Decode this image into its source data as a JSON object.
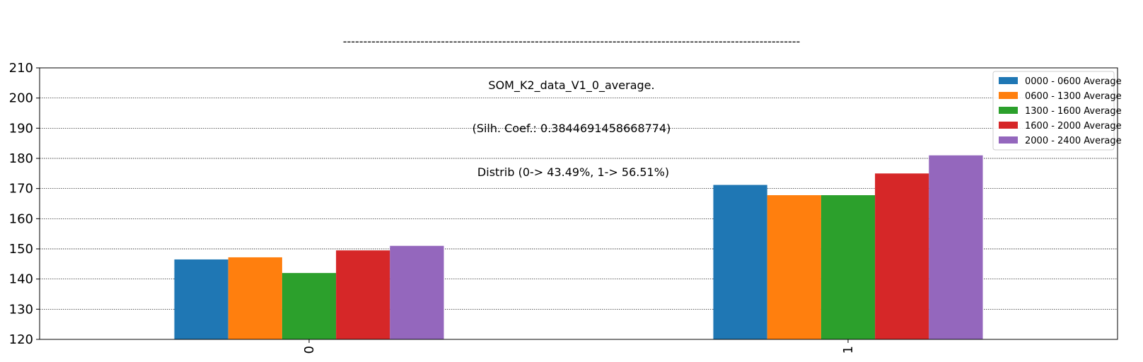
{
  "chart_data": {
    "type": "bar",
    "title_lines": [
      "----------------------------------------------------------------------------------------------------------------",
      "SOM_K2_data_V1_0_average.",
      "(Silh. Coef.: 0.3844691458668774)",
      " Distrib (0-> 43.49%, 1-> 56.51%)"
    ],
    "categories": [
      "0",
      "1"
    ],
    "series": [
      {
        "name": "0000 - 0600 Average",
        "color": "#1f77b4",
        "values": [
          146.5,
          171.2
        ]
      },
      {
        "name": "0600 - 1300 Average",
        "color": "#ff7f0e",
        "values": [
          147.2,
          167.8
        ]
      },
      {
        "name": "1300 - 1600 Average",
        "color": "#2ca02c",
        "values": [
          142.0,
          167.8
        ]
      },
      {
        "name": "1600 - 2000 Average",
        "color": "#d62728",
        "values": [
          149.5,
          175.0
        ]
      },
      {
        "name": "2000 - 2400 Average",
        "color": "#9467bd",
        "values": [
          151.0,
          181.0
        ]
      }
    ],
    "yticks": [
      120,
      130,
      140,
      150,
      160,
      170,
      180,
      190,
      200,
      210
    ],
    "ylim": [
      120,
      210
    ],
    "grid": true,
    "legend_position": "top-right",
    "xlabel": "",
    "ylabel": ""
  }
}
